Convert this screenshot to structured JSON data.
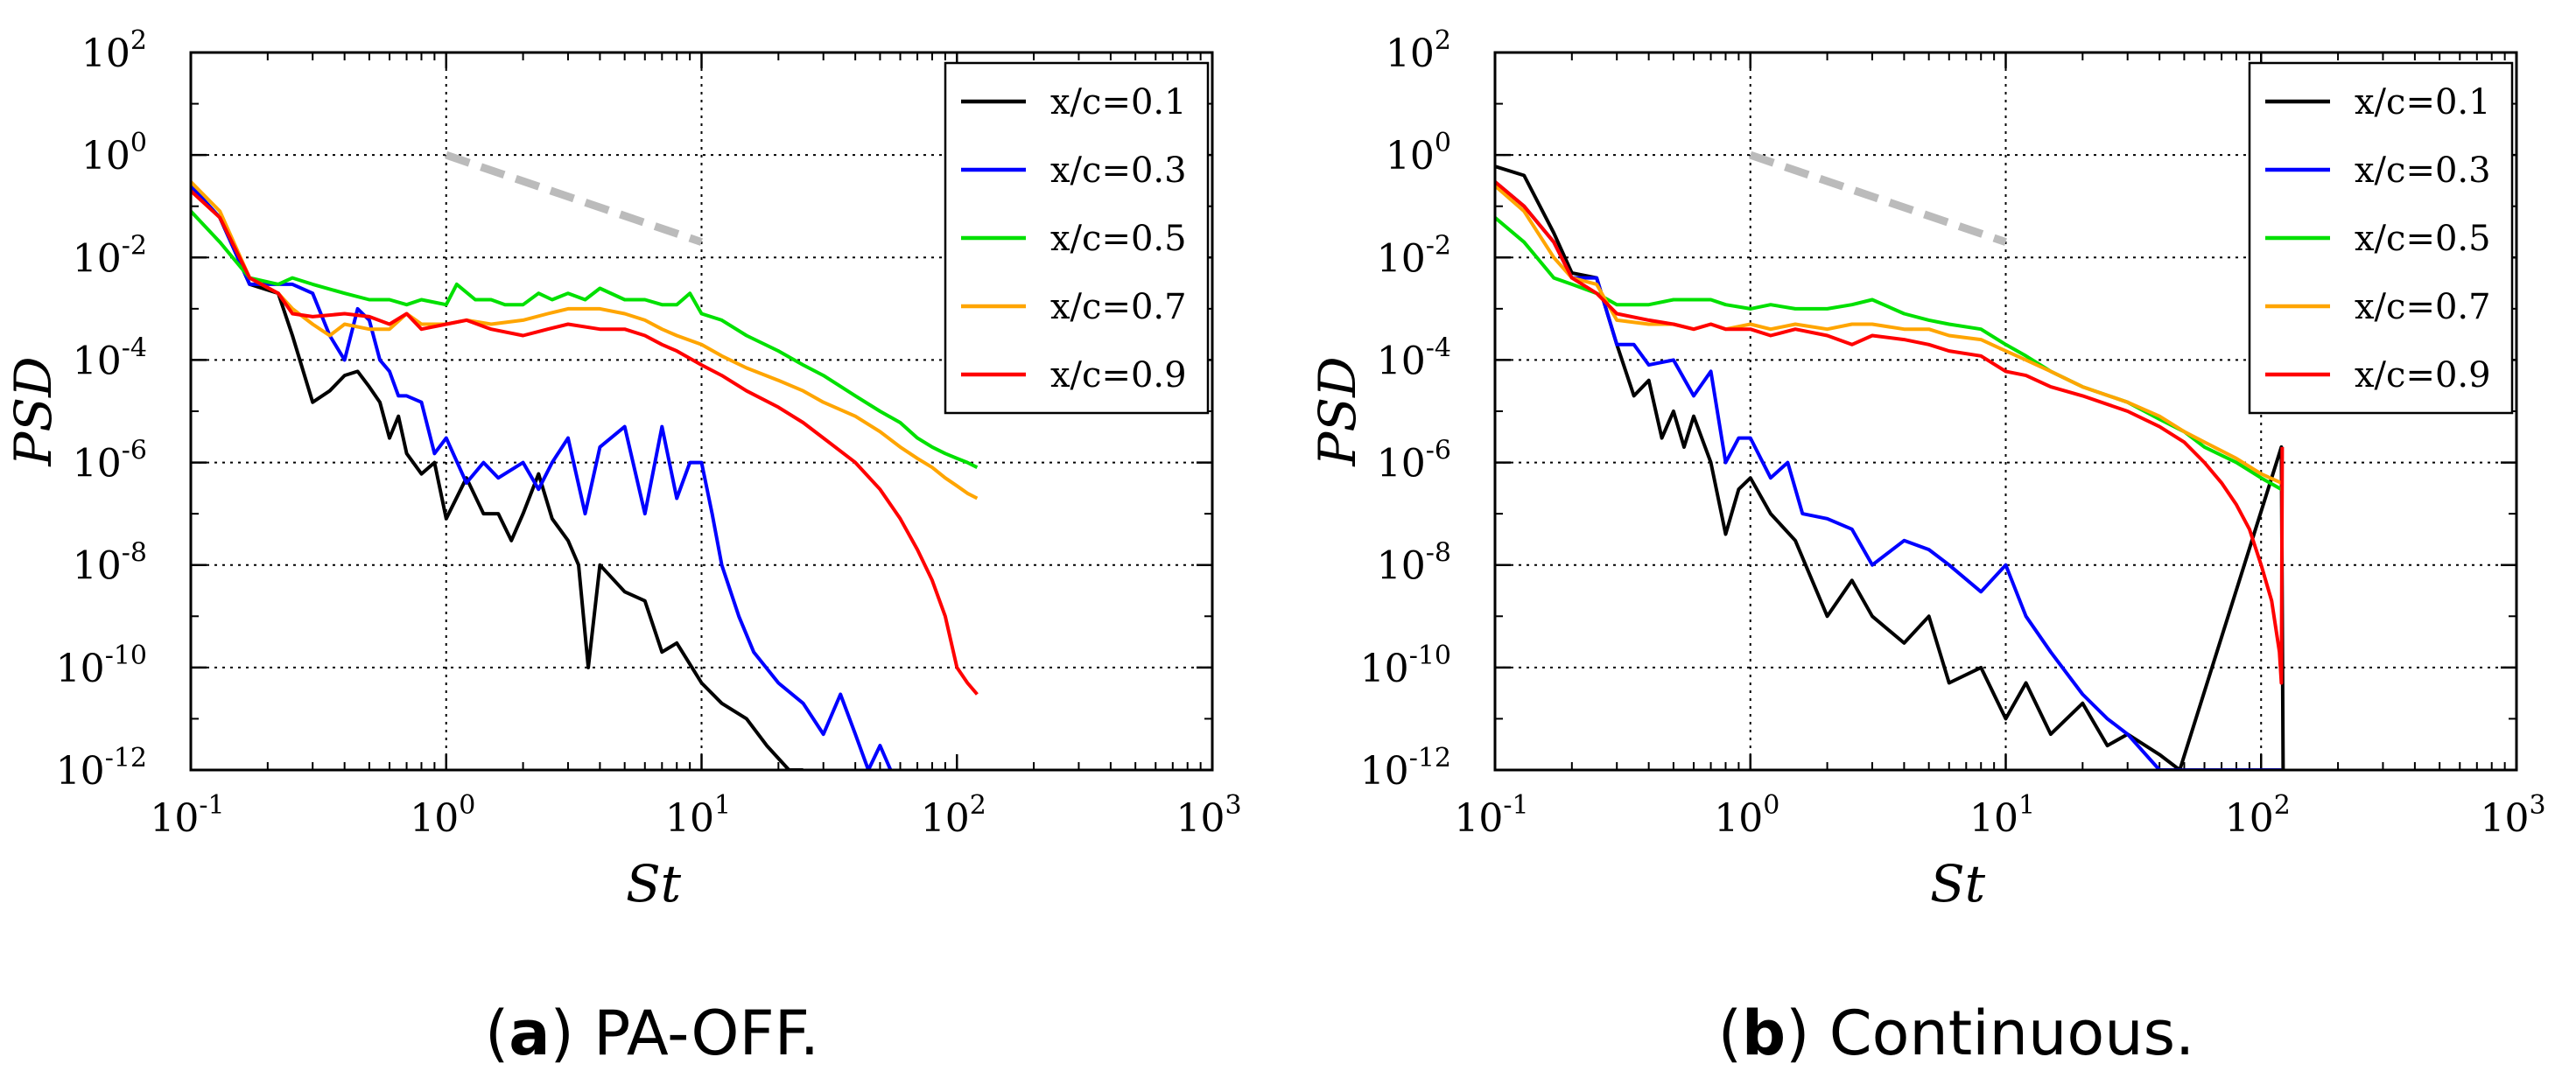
{
  "chart_data": [
    {
      "id": "a",
      "type": "line",
      "caption_letter": "a",
      "caption_text": "PA-OFF.",
      "xlabel": "St",
      "ylabel": "PSD",
      "xscale": "log",
      "yscale": "log",
      "xlim": [
        0.1,
        1000
      ],
      "ylim": [
        1e-12,
        100
      ],
      "x_ticks": [
        {
          "base": "10",
          "exp": "-1"
        },
        {
          "base": "10",
          "exp": "0"
        },
        {
          "base": "10",
          "exp": "1"
        },
        {
          "base": "10",
          "exp": "2"
        },
        {
          "base": "10",
          "exp": "3"
        }
      ],
      "y_ticks": [
        {
          "base": "10",
          "exp": "-12"
        },
        {
          "base": "10",
          "exp": "-10"
        },
        {
          "base": "10",
          "exp": "-8"
        },
        {
          "base": "10",
          "exp": "-6"
        },
        {
          "base": "10",
          "exp": "-4"
        },
        {
          "base": "10",
          "exp": "-2"
        },
        {
          "base": "10",
          "exp": "0"
        },
        {
          "base": "10",
          "exp": "2"
        }
      ],
      "grid": "dotted at 10^0 and 10^1 (x), every 10^2 decade (y)",
      "legend_position": "top-right",
      "reference_line": {
        "x": [
          1,
          10
        ],
        "y": [
          1.0,
          0.02
        ],
        "color": "#bbbbbb",
        "style": "dashed"
      },
      "series": [
        {
          "name": "x/c=0.1",
          "color": "#000000",
          "x": [
            0.1,
            0.13,
            0.17,
            0.22,
            0.25,
            0.3,
            0.35,
            0.4,
            0.45,
            0.5,
            0.55,
            0.6,
            0.65,
            0.7,
            0.8,
            0.9,
            1.0,
            1.2,
            1.4,
            1.6,
            1.8,
            2.0,
            2.3,
            2.6,
            3.0,
            3.3,
            3.6,
            4.0,
            5.0,
            6.0,
            7.0,
            8.0,
            10.0,
            12.0,
            15.0,
            18.0,
            22.0,
            25.0
          ],
          "y": [
            0.25,
            0.06,
            0.003,
            0.002,
            0.0003,
            1.5e-05,
            2.5e-05,
            5e-05,
            6e-05,
            3e-05,
            1.5e-05,
            3e-06,
            8e-06,
            1.5e-06,
            6e-07,
            1e-06,
            8e-08,
            5e-07,
            1e-07,
            1e-07,
            3e-08,
            1e-07,
            6e-07,
            8e-08,
            3e-08,
            1e-08,
            1e-10,
            1e-08,
            3e-09,
            2e-09,
            2e-10,
            3e-10,
            5e-11,
            2e-11,
            1e-11,
            3e-12,
            1e-12,
            1e-12
          ]
        },
        {
          "name": "x/c=0.3",
          "color": "#0000ff",
          "x": [
            0.1,
            0.13,
            0.17,
            0.22,
            0.25,
            0.3,
            0.35,
            0.4,
            0.45,
            0.5,
            0.55,
            0.6,
            0.65,
            0.7,
            0.8,
            0.9,
            1.0,
            1.2,
            1.4,
            1.6,
            2.0,
            2.3,
            2.6,
            3.0,
            3.5,
            4.0,
            5.0,
            6.0,
            7.0,
            8.0,
            9.0,
            10.0,
            11.0,
            12.0,
            14.0,
            16.0,
            20.0,
            25.0,
            30.0,
            35.0,
            40.0,
            45.0,
            50.0,
            55.0
          ],
          "y": [
            0.25,
            0.06,
            0.003,
            0.003,
            0.003,
            0.002,
            0.0003,
            0.0001,
            0.001,
            0.0006,
            0.0001,
            6e-05,
            2e-05,
            2e-05,
            1.5e-05,
            1.5e-06,
            3e-06,
            4e-07,
            1e-06,
            5e-07,
            1e-06,
            3e-07,
            1e-06,
            3e-06,
            1e-07,
            2e-06,
            5e-06,
            1e-07,
            5e-06,
            2e-07,
            1e-06,
            1e-06,
            1e-07,
            1e-08,
            1e-09,
            2e-10,
            5e-11,
            2e-11,
            5e-12,
            3e-11,
            5e-12,
            1e-12,
            3e-12,
            1e-12
          ]
        },
        {
          "name": "x/c=0.5",
          "color": "#00e000",
          "x": [
            0.1,
            0.13,
            0.17,
            0.22,
            0.25,
            0.3,
            0.4,
            0.5,
            0.6,
            0.7,
            0.8,
            1.0,
            1.1,
            1.3,
            1.5,
            1.7,
            2.0,
            2.3,
            2.6,
            3.0,
            3.5,
            4.0,
            5.0,
            6.0,
            7.0,
            8.0,
            9.0,
            10.0,
            12.0,
            15.0,
            20.0,
            25.0,
            30.0,
            40.0,
            50.0,
            60.0,
            70.0,
            80.0,
            90.0,
            100.0,
            110.0,
            120.0
          ],
          "y": [
            0.08,
            0.02,
            0.004,
            0.003,
            0.004,
            0.003,
            0.002,
            0.0015,
            0.0015,
            0.0012,
            0.0015,
            0.0012,
            0.003,
            0.0015,
            0.0015,
            0.0012,
            0.0012,
            0.002,
            0.0015,
            0.002,
            0.0015,
            0.0025,
            0.0015,
            0.0015,
            0.0012,
            0.0012,
            0.002,
            0.0008,
            0.0006,
            0.0003,
            0.00015,
            8e-05,
            5e-05,
            2e-05,
            1e-05,
            6e-06,
            3e-06,
            2e-06,
            1.5e-06,
            1.2e-06,
            1e-06,
            8e-07
          ]
        },
        {
          "name": "x/c=0.7",
          "color": "#ffa500",
          "x": [
            0.1,
            0.13,
            0.17,
            0.22,
            0.25,
            0.3,
            0.35,
            0.4,
            0.5,
            0.6,
            0.7,
            0.8,
            1.0,
            1.2,
            1.5,
            2.0,
            2.5,
            3.0,
            4.0,
            5.0,
            6.0,
            7.0,
            8.0,
            10.0,
            12.0,
            15.0,
            20.0,
            25.0,
            30.0,
            40.0,
            50.0,
            60.0,
            70.0,
            80.0,
            90.0,
            100.0,
            110.0,
            120.0
          ],
          "y": [
            0.3,
            0.08,
            0.004,
            0.002,
            0.001,
            0.0005,
            0.0003,
            0.0005,
            0.0004,
            0.0004,
            0.0008,
            0.0005,
            0.0005,
            0.0006,
            0.0005,
            0.0006,
            0.0008,
            0.001,
            0.001,
            0.0008,
            0.0006,
            0.0004,
            0.0003,
            0.0002,
            0.00012,
            7e-05,
            4e-05,
            2.5e-05,
            1.5e-05,
            8e-06,
            4e-06,
            2e-06,
            1.2e-06,
            8e-07,
            5e-07,
            3.5e-07,
            2.5e-07,
            2e-07
          ]
        },
        {
          "name": "x/c=0.9",
          "color": "#ff0000",
          "x": [
            0.1,
            0.13,
            0.17,
            0.22,
            0.25,
            0.3,
            0.4,
            0.5,
            0.6,
            0.7,
            0.8,
            1.0,
            1.2,
            1.5,
            2.0,
            2.5,
            3.0,
            4.0,
            5.0,
            6.0,
            7.0,
            8.0,
            10.0,
            12.0,
            15.0,
            20.0,
            25.0,
            30.0,
            40.0,
            50.0,
            60.0,
            70.0,
            80.0,
            90.0,
            100.0,
            110.0,
            120.0
          ],
          "y": [
            0.2,
            0.06,
            0.004,
            0.002,
            0.0008,
            0.0007,
            0.0008,
            0.0007,
            0.0005,
            0.0008,
            0.0004,
            0.0005,
            0.0006,
            0.0004,
            0.0003,
            0.0004,
            0.0005,
            0.0004,
            0.0004,
            0.0003,
            0.0002,
            0.00015,
            8e-05,
            5e-05,
            2.5e-05,
            1.2e-05,
            6e-06,
            3e-06,
            1e-06,
            3e-07,
            8e-08,
            2e-08,
            5e-09,
            1e-09,
            1e-10,
            5e-11,
            3e-11
          ]
        }
      ]
    },
    {
      "id": "b",
      "type": "line",
      "caption_letter": "b",
      "caption_text": "Continuous.",
      "xlabel": "St",
      "ylabel": "PSD",
      "xscale": "log",
      "yscale": "log",
      "xlim": [
        0.1,
        1000
      ],
      "ylim": [
        1e-12,
        100
      ],
      "x_ticks": [
        {
          "base": "10",
          "exp": "-1"
        },
        {
          "base": "10",
          "exp": "0"
        },
        {
          "base": "10",
          "exp": "1"
        },
        {
          "base": "10",
          "exp": "2"
        },
        {
          "base": "10",
          "exp": "3"
        }
      ],
      "y_ticks": [
        {
          "base": "10",
          "exp": "-12"
        },
        {
          "base": "10",
          "exp": "-10"
        },
        {
          "base": "10",
          "exp": "-8"
        },
        {
          "base": "10",
          "exp": "-6"
        },
        {
          "base": "10",
          "exp": "-4"
        },
        {
          "base": "10",
          "exp": "-2"
        },
        {
          "base": "10",
          "exp": "0"
        },
        {
          "base": "10",
          "exp": "2"
        }
      ],
      "grid": "dotted at 10^0, 10^1, 10^2 (x), every 10^2 decade (y)",
      "legend_position": "top-right",
      "reference_line": {
        "x": [
          1,
          10
        ],
        "y": [
          1.0,
          0.02
        ],
        "color": "#bbbbbb",
        "style": "dashed"
      },
      "series": [
        {
          "name": "x/c=0.1",
          "color": "#000000",
          "x": [
            0.1,
            0.13,
            0.17,
            0.2,
            0.25,
            0.3,
            0.35,
            0.4,
            0.45,
            0.5,
            0.55,
            0.6,
            0.7,
            0.8,
            0.9,
            1.0,
            1.2,
            1.5,
            2.0,
            2.5,
            3.0,
            4.0,
            5.0,
            6.0,
            8.0,
            10.0,
            12.0,
            15.0,
            20.0,
            25.0,
            30.0,
            40.0,
            48.0,
            120.0,
            122.0
          ],
          "y": [
            0.6,
            0.4,
            0.03,
            0.005,
            0.004,
            0.0002,
            2e-05,
            4e-05,
            3e-06,
            1e-05,
            2e-06,
            8e-06,
            1e-06,
            4e-08,
            3e-07,
            5e-07,
            1e-07,
            3e-08,
            1e-09,
            5e-09,
            1e-09,
            3e-10,
            1e-09,
            5e-11,
            1e-10,
            1e-11,
            5e-11,
            5e-12,
            2e-11,
            3e-12,
            5e-12,
            2e-12,
            1e-12,
            2e-06,
            1e-12
          ]
        },
        {
          "name": "x/c=0.3",
          "color": "#0000ff",
          "x": [
            0.1,
            0.13,
            0.17,
            0.2,
            0.25,
            0.3,
            0.35,
            0.4,
            0.5,
            0.6,
            0.7,
            0.8,
            0.9,
            1.0,
            1.2,
            1.4,
            1.6,
            2.0,
            2.5,
            3.0,
            4.0,
            5.0,
            6.0,
            8.0,
            10.0,
            12.0,
            15.0,
            20.0,
            25.0,
            30.0,
            40.0,
            120.0
          ],
          "y": [
            0.3,
            0.1,
            0.02,
            0.004,
            0.004,
            0.0002,
            0.0002,
            8e-05,
            0.0001,
            2e-05,
            6e-05,
            1e-06,
            3e-06,
            3e-06,
            5e-07,
            1e-06,
            1e-07,
            8e-08,
            5e-08,
            1e-08,
            3e-08,
            2e-08,
            1e-08,
            3e-09,
            1e-08,
            1e-09,
            2e-10,
            3e-11,
            1e-11,
            5e-12,
            1e-12,
            1e-12
          ]
        },
        {
          "name": "x/c=0.5",
          "color": "#00e000",
          "x": [
            0.1,
            0.13,
            0.17,
            0.2,
            0.25,
            0.3,
            0.4,
            0.5,
            0.6,
            0.7,
            0.8,
            1.0,
            1.2,
            1.5,
            2.0,
            2.5,
            3.0,
            4.0,
            5.0,
            6.0,
            8.0,
            10.0,
            12.0,
            15.0,
            20.0,
            30.0,
            40.0,
            50.0,
            60.0,
            80.0,
            100.0,
            120.0
          ],
          "y": [
            0.06,
            0.02,
            0.004,
            0.003,
            0.002,
            0.0012,
            0.0012,
            0.0015,
            0.0015,
            0.0015,
            0.0012,
            0.001,
            0.0012,
            0.001,
            0.001,
            0.0012,
            0.0015,
            0.0008,
            0.0006,
            0.0005,
            0.0004,
            0.0002,
            0.00012,
            6e-05,
            3e-05,
            1.5e-05,
            7e-06,
            4e-06,
            2e-06,
            1e-06,
            5e-07,
            3e-07
          ]
        },
        {
          "name": "x/c=0.7",
          "color": "#ffa500",
          "x": [
            0.1,
            0.13,
            0.17,
            0.2,
            0.25,
            0.3,
            0.4,
            0.5,
            0.6,
            0.7,
            0.8,
            1.0,
            1.2,
            1.5,
            2.0,
            2.5,
            3.0,
            4.0,
            5.0,
            6.0,
            8.0,
            10.0,
            12.0,
            15.0,
            20.0,
            30.0,
            40.0,
            50.0,
            60.0,
            80.0,
            100.0,
            120.0
          ],
          "y": [
            0.25,
            0.08,
            0.01,
            0.004,
            0.003,
            0.0006,
            0.0005,
            0.0005,
            0.0004,
            0.0005,
            0.0004,
            0.0005,
            0.0004,
            0.0005,
            0.0004,
            0.0005,
            0.0005,
            0.0004,
            0.0004,
            0.0003,
            0.00025,
            0.00015,
            0.0001,
            6e-05,
            3e-05,
            1.5e-05,
            8e-06,
            4e-06,
            2.5e-06,
            1.2e-06,
            6e-07,
            4e-07
          ]
        },
        {
          "name": "x/c=0.9",
          "color": "#ff0000",
          "x": [
            0.1,
            0.13,
            0.17,
            0.2,
            0.25,
            0.3,
            0.4,
            0.5,
            0.6,
            0.7,
            0.8,
            1.0,
            1.2,
            1.5,
            2.0,
            2.5,
            3.0,
            4.0,
            5.0,
            6.0,
            8.0,
            10.0,
            12.0,
            15.0,
            20.0,
            30.0,
            40.0,
            50.0,
            60.0,
            70.0,
            80.0,
            90.0,
            100.0,
            110.0,
            118.0,
            120.0,
            121.0
          ],
          "y": [
            0.3,
            0.1,
            0.02,
            0.004,
            0.002,
            0.0008,
            0.0006,
            0.0005,
            0.0004,
            0.0005,
            0.0004,
            0.0004,
            0.0003,
            0.0004,
            0.0003,
            0.0002,
            0.0003,
            0.00025,
            0.0002,
            0.00015,
            0.00012,
            6e-05,
            5e-05,
            3e-05,
            2e-05,
            1e-05,
            5e-06,
            2.5e-06,
            1e-06,
            4e-07,
            1.5e-07,
            5e-08,
            1e-08,
            2e-09,
            2e-10,
            5e-11,
            2e-06
          ]
        }
      ]
    }
  ]
}
